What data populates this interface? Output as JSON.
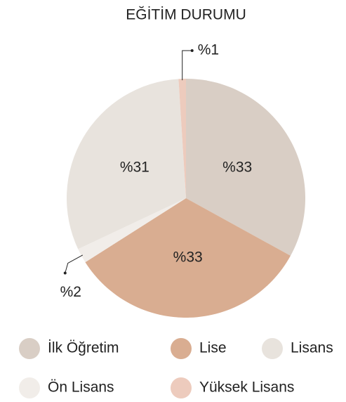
{
  "chart_data": {
    "type": "pie",
    "title": "EĞİTİM DURUMU",
    "categories": [
      "İlk Öğretim",
      "Lise",
      "Lisans",
      "Ön Lisans",
      "Yüksek Lisans"
    ],
    "values": [
      33,
      33,
      31,
      2,
      1
    ],
    "value_labels": [
      "%33",
      "%33",
      "%31",
      "%2",
      "%1"
    ],
    "colors": [
      "#d9cec5",
      "#d9ad91",
      "#e8e3dd",
      "#f1ede9",
      "#edcbbd"
    ]
  }
}
